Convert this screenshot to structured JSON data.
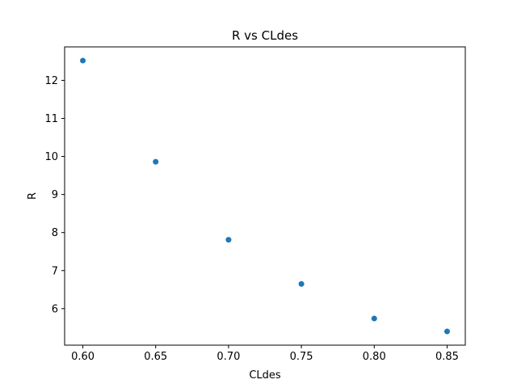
{
  "chart_data": {
    "type": "scatter",
    "title": "R vs CLdes",
    "xlabel": "CLdes",
    "ylabel": "R",
    "x": [
      0.6,
      0.65,
      0.7,
      0.75,
      0.8,
      0.85
    ],
    "y": [
      12.52,
      9.86,
      7.81,
      6.65,
      5.74,
      5.4
    ],
    "xlim": [
      0.5875,
      0.8625
    ],
    "ylim": [
      5.04,
      12.88
    ],
    "xticks": [
      "0.60",
      "0.65",
      "0.70",
      "0.75",
      "0.80",
      "0.85"
    ],
    "yticks": [
      "6",
      "7",
      "8",
      "9",
      "10",
      "11",
      "12"
    ],
    "marker_color": "#1f77b4",
    "grid": false,
    "legend": "none"
  }
}
